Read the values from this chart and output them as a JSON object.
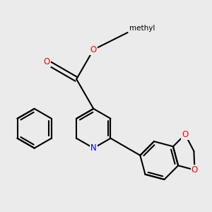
{
  "bg_color": "#ebebeb",
  "bond_color": "#000000",
  "bond_width": 1.5,
  "atom_colors": {
    "N": "#0000ff",
    "O": "#ff0000",
    "C": "#000000"
  },
  "font_size": 8.5,
  "figsize": [
    3.0,
    3.0
  ],
  "dpi": 100
}
